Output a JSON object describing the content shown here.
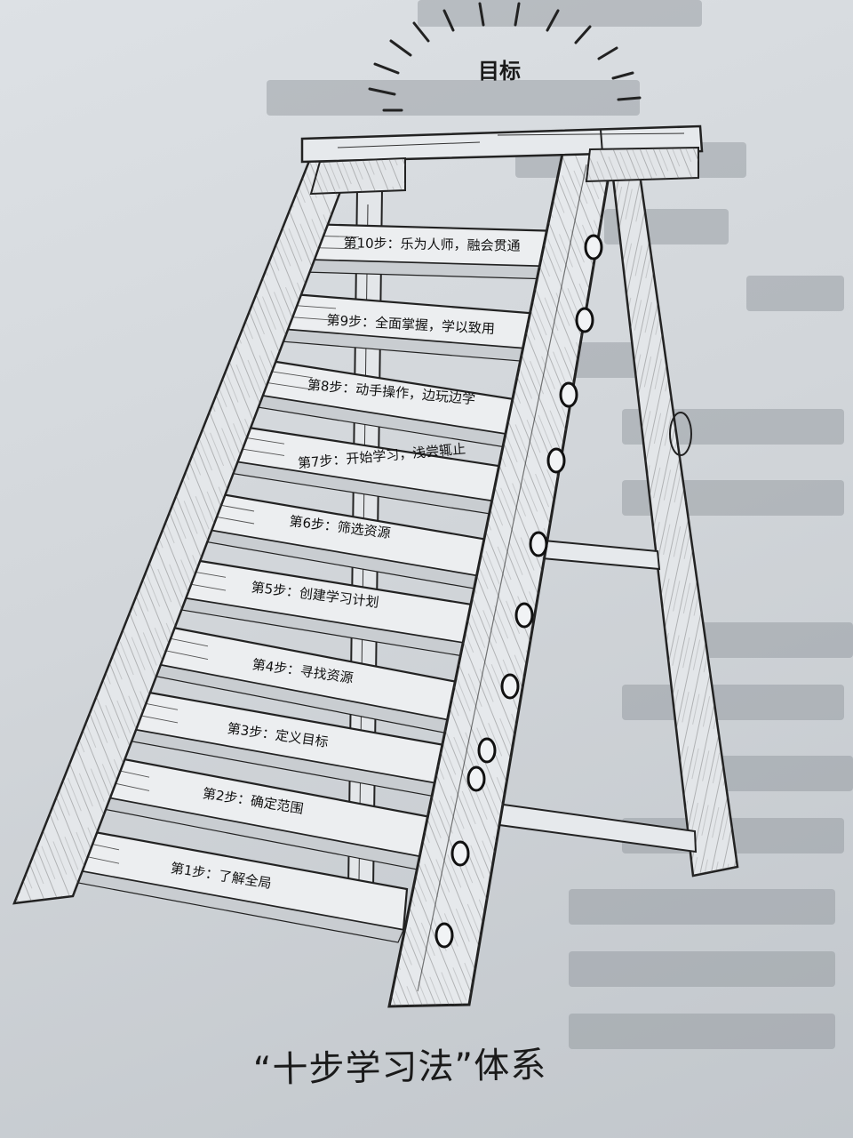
{
  "goal_label": "目标",
  "steps": [
    {
      "number": 1,
      "label": "第1步：了解全局"
    },
    {
      "number": 2,
      "label": "第2步：确定范围"
    },
    {
      "number": 3,
      "label": "第3步：定义目标"
    },
    {
      "number": 4,
      "label": "第4步：寻找资源"
    },
    {
      "number": 5,
      "label": "第5步：创建学习计划"
    },
    {
      "number": 6,
      "label": "第6步：筛选资源"
    },
    {
      "number": 7,
      "label": "第7步：开始学习，浅尝辄止"
    },
    {
      "number": 8,
      "label": "第8步：动手操作，边玩边学"
    },
    {
      "number": 9,
      "label": "第9步：全面掌握，学以致用"
    },
    {
      "number": 10,
      "label": "第10步：乐为人师，融会贯通"
    }
  ],
  "caption": "“十步学习法”体系",
  "colors": {
    "paper": "#d6dadf",
    "ink": "#1a1a1a",
    "bleed_text": "#8e949a"
  }
}
